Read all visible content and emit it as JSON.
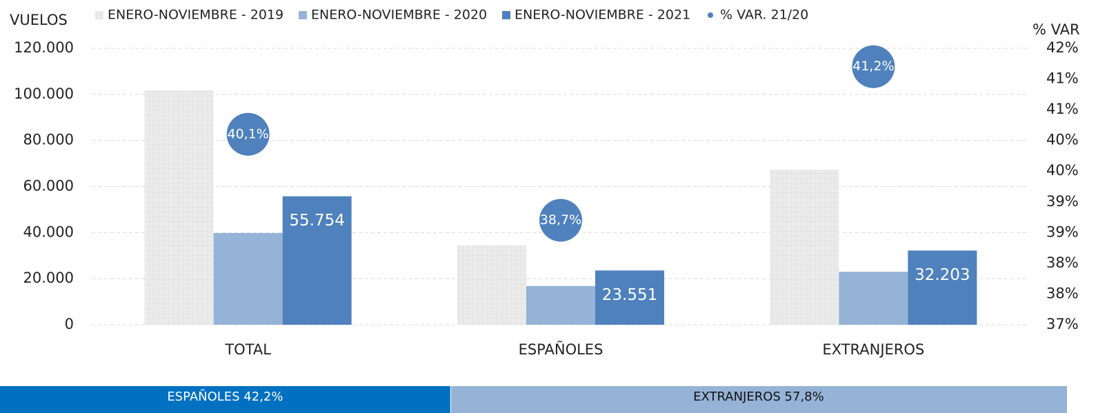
{
  "chart_data": [
    {
      "type": "bar",
      "y_label": "VUELOS",
      "y2_label": "% VAR",
      "categories": [
        "TOTAL",
        "ESPAÑOLES",
        "EXTRANJEROS"
      ],
      "series": [
        {
          "name": "ENERO-NOVIEMBRE - 2019",
          "type": "bar",
          "color": "#ebebeb",
          "pattern": "grid",
          "values": [
            101700,
            34400,
            67300
          ]
        },
        {
          "name": "ENERO-NOVIEMBRE - 2020",
          "type": "bar",
          "color": "#95b3d7",
          "values": [
            39800,
            16800,
            23000
          ]
        },
        {
          "name": "ENERO-NOVIEMBRE - 2021",
          "type": "bar",
          "color": "#4f81bd",
          "values": [
            55754,
            23551,
            32203
          ],
          "value_labels": [
            "55.754",
            "23.551",
            "32.203"
          ]
        },
        {
          "name": "% VAR. 21/20",
          "type": "point",
          "axis": "y2",
          "color": "#4f81bd",
          "values": [
            40.1,
            38.7,
            41.2
          ],
          "value_labels": [
            "40,1%",
            "38,7%",
            "41,2%"
          ]
        }
      ],
      "ylim": [
        0,
        120000
      ],
      "yticks": [
        0,
        {
          "value": 20000,
          "label": "20.000"
        },
        {
          "value": 40000,
          "label": "40.000"
        },
        {
          "value": 60000,
          "label": "60.000"
        },
        {
          "value": 80000,
          "label": "80.000"
        },
        {
          "value": 100000,
          "label": "100.000"
        },
        {
          "value": 120000,
          "label": "120.000"
        }
      ],
      "y2lim": [
        37,
        41.5
      ],
      "y2ticks": [
        {
          "value": 37,
          "label": "37%"
        },
        {
          "value": 37.5,
          "label": "38%"
        },
        {
          "value": 38,
          "label": "38%"
        },
        {
          "value": 38.5,
          "label": "39%"
        },
        {
          "value": 39,
          "label": "39%"
        },
        {
          "value": 39.5,
          "label": "40%"
        },
        {
          "value": 40,
          "label": "40%"
        },
        {
          "value": 40.5,
          "label": "41%"
        },
        {
          "value": 41,
          "label": "41%"
        },
        {
          "value": 41.5,
          "label": "42%"
        }
      ],
      "grid": true,
      "legend": "top"
    },
    {
      "type": "stacked_bar_100",
      "values": [
        42.2,
        57.8
      ],
      "value_labels": [
        "ESPAÑOLES 42,2%",
        "EXTRANJEROS 57,8%"
      ],
      "colors": [
        "#0070c0",
        "#95b3d7"
      ]
    }
  ]
}
